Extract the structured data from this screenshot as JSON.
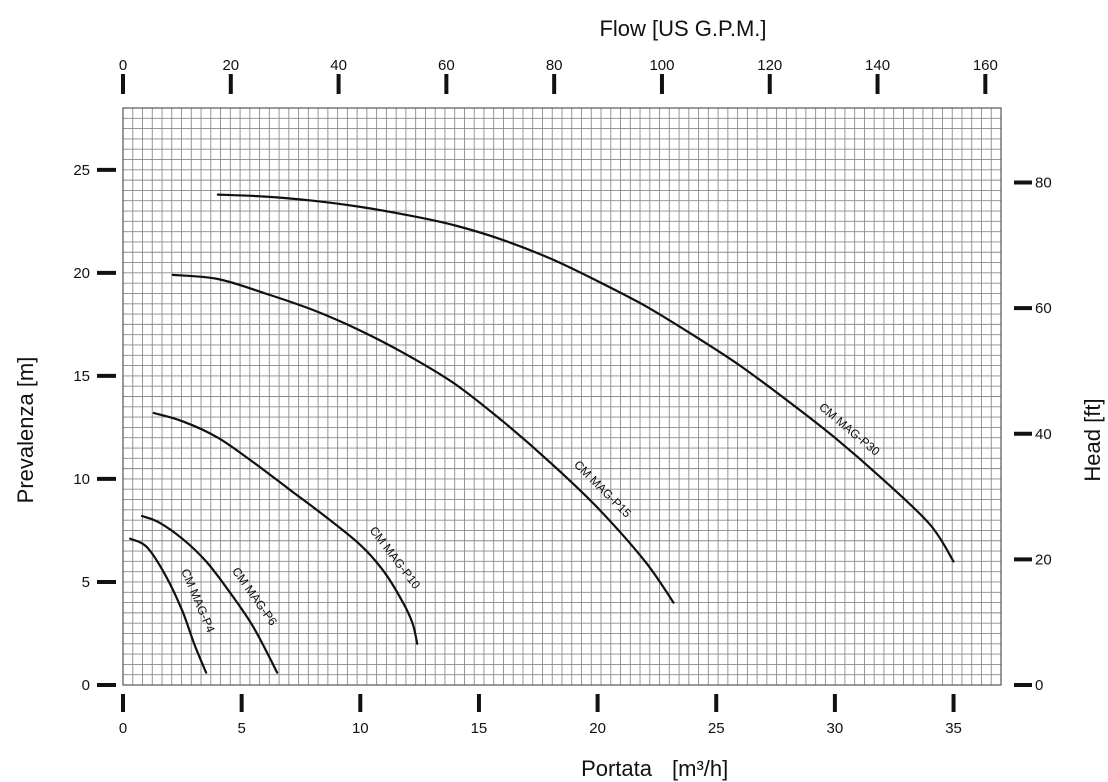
{
  "chart_data": {
    "type": "line",
    "xlabel_bottom": "Portata",
    "xlabel_bottom_unit": "[m³/h]",
    "xlabel_top": "Flow  [US G.P.M.]",
    "ylabel_left": "Prevalenza [m]",
    "ylabel_right": "Head [ft]",
    "xlim": [
      0,
      37
    ],
    "ylim": [
      0,
      28
    ],
    "grid": true,
    "x_ticks_bottom": [
      0,
      5,
      10,
      15,
      20,
      25,
      30,
      35
    ],
    "y_ticks_left": [
      0,
      5,
      10,
      15,
      20,
      25
    ],
    "x_ticks_top": [
      0,
      20,
      40,
      60,
      80,
      100,
      120,
      140,
      160
    ],
    "y_ticks_right": [
      0,
      20,
      40,
      60,
      80
    ],
    "series": [
      {
        "name": "CM MAG-P4",
        "points": [
          [
            0.3,
            7.1
          ],
          [
            1.0,
            6.7
          ],
          [
            1.8,
            5.3
          ],
          [
            2.5,
            3.6
          ],
          [
            3.0,
            2.0
          ],
          [
            3.5,
            0.6
          ]
        ]
      },
      {
        "name": "CM MAG-P6",
        "points": [
          [
            0.8,
            8.2
          ],
          [
            1.5,
            7.9
          ],
          [
            2.5,
            7.1
          ],
          [
            3.5,
            6.0
          ],
          [
            4.5,
            4.5
          ],
          [
            5.5,
            2.8
          ],
          [
            6.5,
            0.6
          ]
        ]
      },
      {
        "name": "CM MAG-P10",
        "points": [
          [
            1.3,
            13.2
          ],
          [
            2.5,
            12.8
          ],
          [
            4.0,
            12.0
          ],
          [
            5.5,
            10.8
          ],
          [
            7.0,
            9.5
          ],
          [
            8.5,
            8.2
          ],
          [
            10.0,
            6.8
          ],
          [
            11.0,
            5.5
          ],
          [
            11.8,
            4.0
          ],
          [
            12.2,
            3.0
          ],
          [
            12.4,
            2.0
          ]
        ]
      },
      {
        "name": "CM MAG-P15",
        "points": [
          [
            2.1,
            19.9
          ],
          [
            4.0,
            19.7
          ],
          [
            6.0,
            19.0
          ],
          [
            8.0,
            18.2
          ],
          [
            10.0,
            17.2
          ],
          [
            12.0,
            16.0
          ],
          [
            14.0,
            14.6
          ],
          [
            16.0,
            12.8
          ],
          [
            18.0,
            10.8
          ],
          [
            20.0,
            8.6
          ],
          [
            22.0,
            6.0
          ],
          [
            23.2,
            4.0
          ]
        ]
      },
      {
        "name": "CM MAG-P30",
        "points": [
          [
            4.0,
            23.8
          ],
          [
            6.0,
            23.7
          ],
          [
            8.0,
            23.5
          ],
          [
            10.0,
            23.2
          ],
          [
            12.0,
            22.8
          ],
          [
            14.0,
            22.3
          ],
          [
            16.0,
            21.6
          ],
          [
            18.0,
            20.7
          ],
          [
            20.0,
            19.6
          ],
          [
            22.0,
            18.4
          ],
          [
            24.0,
            17.0
          ],
          [
            26.0,
            15.5
          ],
          [
            28.0,
            13.8
          ],
          [
            30.0,
            12.0
          ],
          [
            32.0,
            10.0
          ],
          [
            34.0,
            7.8
          ],
          [
            35.0,
            6.0
          ]
        ]
      }
    ],
    "colors": {
      "grid": "#8a8a8a",
      "frame": "#555555",
      "curve": "#111111",
      "text": "#111111"
    }
  }
}
